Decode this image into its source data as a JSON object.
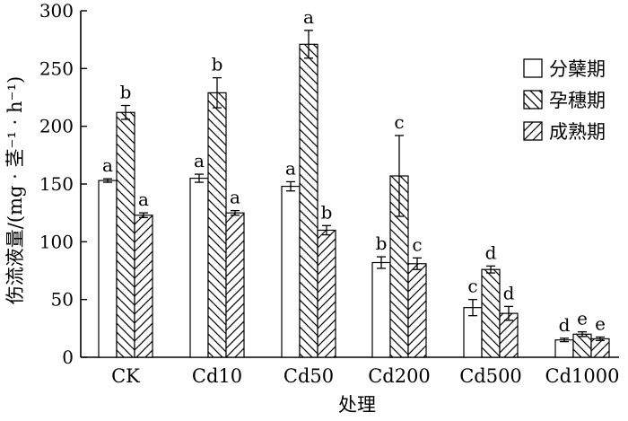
{
  "chart_data": {
    "type": "bar",
    "xlabel": "处理",
    "ylabel": "伤流液量/(mg · 茎⁻¹ · h⁻¹)",
    "ylim": [
      0,
      300
    ],
    "yticks": [
      0,
      50,
      100,
      150,
      200,
      250,
      300
    ],
    "grid": false,
    "legend_position": "top-right",
    "categories": [
      "CK",
      "Cd10",
      "Cd50",
      "Cd200",
      "Cd500",
      "Cd1000"
    ],
    "series": [
      {
        "name": "分蘖期",
        "pattern": "none",
        "values": [
          153,
          155,
          148,
          82,
          43,
          15
        ],
        "errors": [
          1.5,
          3.5,
          4,
          5,
          7,
          1.5
        ],
        "labels": [
          "a",
          "a",
          "a",
          "b",
          "c",
          "d"
        ]
      },
      {
        "name": "孕穗期",
        "pattern": "back-diagonal",
        "values": [
          212,
          229,
          271,
          157,
          76,
          20
        ],
        "errors": [
          6,
          13,
          12,
          35,
          3,
          2
        ],
        "labels": [
          "b",
          "b",
          "a",
          "c",
          "d",
          "e"
        ]
      },
      {
        "name": "成熟期",
        "pattern": "forward-diagonal",
        "values": [
          123,
          125,
          110,
          81,
          38,
          16
        ],
        "errors": [
          2,
          2,
          4,
          5,
          6,
          1.5
        ],
        "labels": [
          "a",
          "a",
          "b",
          "c",
          "d",
          "e"
        ]
      }
    ]
  }
}
